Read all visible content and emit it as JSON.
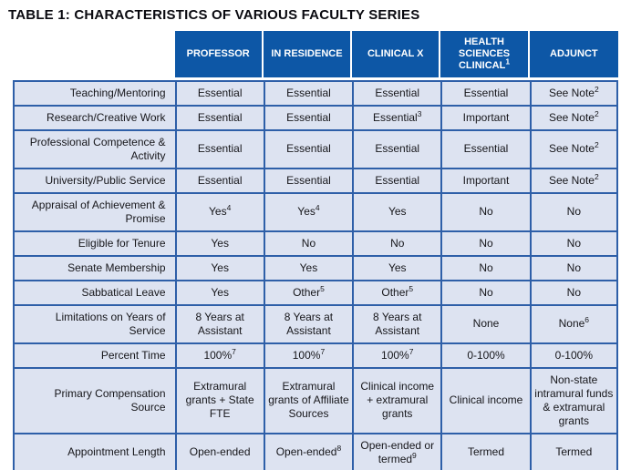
{
  "title": "TABLE 1:  CHARACTERISTICS OF VARIOUS FACULTY SERIES",
  "colors": {
    "header_bg": "#0d57a6",
    "header_text": "#ffffff",
    "cell_bg": "#dde3f1",
    "border": "#2e5fa8",
    "body_text": "#16161a",
    "title_text": "#0a0a10"
  },
  "table": {
    "columns": [
      {
        "label": "PROFESSOR",
        "sup": ""
      },
      {
        "label": "IN RESIDENCE",
        "sup": ""
      },
      {
        "label": "CLINICAL X",
        "sup": ""
      },
      {
        "label": "HEALTH SCIENCES CLINICAL",
        "sup": "1"
      },
      {
        "label": "ADJUNCT",
        "sup": ""
      }
    ],
    "rows": [
      {
        "label": "Teaching/Mentoring",
        "cells": [
          {
            "text": "Essential",
            "sup": ""
          },
          {
            "text": "Essential",
            "sup": ""
          },
          {
            "text": "Essential",
            "sup": ""
          },
          {
            "text": "Essential",
            "sup": ""
          },
          {
            "text": "See Note",
            "sup": "2"
          }
        ]
      },
      {
        "label": "Research/Creative Work",
        "cells": [
          {
            "text": "Essential",
            "sup": ""
          },
          {
            "text": "Essential",
            "sup": ""
          },
          {
            "text": "Essential",
            "sup": "3"
          },
          {
            "text": "Important",
            "sup": ""
          },
          {
            "text": "See Note",
            "sup": "2"
          }
        ]
      },
      {
        "label": "Professional Competence & Activity",
        "cells": [
          {
            "text": "Essential",
            "sup": ""
          },
          {
            "text": "Essential",
            "sup": ""
          },
          {
            "text": "Essential",
            "sup": ""
          },
          {
            "text": "Essential",
            "sup": ""
          },
          {
            "text": "See Note",
            "sup": "2"
          }
        ]
      },
      {
        "label": "University/Public Service",
        "cells": [
          {
            "text": "Essential",
            "sup": ""
          },
          {
            "text": "Essential",
            "sup": ""
          },
          {
            "text": "Essential",
            "sup": ""
          },
          {
            "text": "Important",
            "sup": ""
          },
          {
            "text": "See Note",
            "sup": "2"
          }
        ]
      },
      {
        "label": "Appraisal of Achievement & Promise",
        "cells": [
          {
            "text": "Yes",
            "sup": "4"
          },
          {
            "text": "Yes",
            "sup": "4"
          },
          {
            "text": "Yes",
            "sup": ""
          },
          {
            "text": "No",
            "sup": ""
          },
          {
            "text": "No",
            "sup": ""
          }
        ]
      },
      {
        "label": "Eligible for Tenure",
        "cells": [
          {
            "text": "Yes",
            "sup": ""
          },
          {
            "text": "No",
            "sup": ""
          },
          {
            "text": "No",
            "sup": ""
          },
          {
            "text": "No",
            "sup": ""
          },
          {
            "text": "No",
            "sup": ""
          }
        ]
      },
      {
        "label": "Senate Membership",
        "cells": [
          {
            "text": "Yes",
            "sup": ""
          },
          {
            "text": "Yes",
            "sup": ""
          },
          {
            "text": "Yes",
            "sup": ""
          },
          {
            "text": "No",
            "sup": ""
          },
          {
            "text": "No",
            "sup": ""
          }
        ]
      },
      {
        "label": "Sabbatical Leave",
        "cells": [
          {
            "text": "Yes",
            "sup": ""
          },
          {
            "text": "Other",
            "sup": "5"
          },
          {
            "text": "Other",
            "sup": "5"
          },
          {
            "text": "No",
            "sup": ""
          },
          {
            "text": "No",
            "sup": ""
          }
        ]
      },
      {
        "label": "Limitations on Years of Service",
        "cells": [
          {
            "text": "8 Years at Assistant",
            "sup": ""
          },
          {
            "text": "8 Years at Assistant",
            "sup": ""
          },
          {
            "text": "8 Years at Assistant",
            "sup": ""
          },
          {
            "text": "None",
            "sup": ""
          },
          {
            "text": "None",
            "sup": "6"
          }
        ]
      },
      {
        "label": "Percent Time",
        "cells": [
          {
            "text": "100%",
            "sup": "7"
          },
          {
            "text": "100%",
            "sup": "7"
          },
          {
            "text": "100%",
            "sup": "7"
          },
          {
            "text": "0-100%",
            "sup": ""
          },
          {
            "text": "0-100%",
            "sup": ""
          }
        ]
      },
      {
        "label": "Primary Compensation Source",
        "cells": [
          {
            "text": "Extramural grants + State FTE",
            "sup": ""
          },
          {
            "text": "Extramural grants of Affiliate Sources",
            "sup": ""
          },
          {
            "text": "Clinical income + extramural grants",
            "sup": ""
          },
          {
            "text": "Clinical income",
            "sup": ""
          },
          {
            "text": "Non-state intramural funds & extramural grants",
            "sup": ""
          }
        ]
      },
      {
        "label": "Appointment Length",
        "cells": [
          {
            "text": "Open-ended",
            "sup": ""
          },
          {
            "text": "Open-ended",
            "sup": "8"
          },
          {
            "text": "Open-ended or termed",
            "sup": "9"
          },
          {
            "text": "Termed",
            "sup": ""
          },
          {
            "text": "Termed",
            "sup": ""
          }
        ]
      }
    ]
  }
}
